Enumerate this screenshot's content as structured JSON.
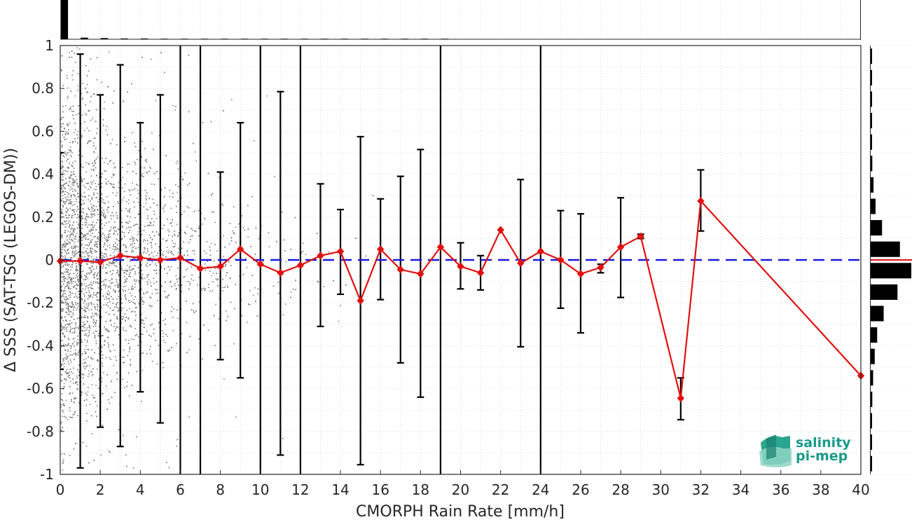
{
  "chart_data": {
    "type": "scatter",
    "xlabel": "CMORPH Rain Rate [mm/h]",
    "ylabel": "Δ SSS (SAT-TSG (LEGOS-DM))",
    "xlim": [
      0,
      40
    ],
    "ylim": [
      -1,
      1
    ],
    "x_ticks": [
      "0",
      "2",
      "4",
      "6",
      "8",
      "10",
      "12",
      "14",
      "16",
      "18",
      "20",
      "22",
      "24",
      "26",
      "28",
      "30",
      "32",
      "34",
      "36",
      "38",
      "40"
    ],
    "y_ticks": [
      "-1",
      "-0.8",
      "-0.6",
      "-0.4",
      "-0.2",
      "0",
      "0.2",
      "0.4",
      "0.6",
      "0.8",
      "1"
    ],
    "grid": "dotted",
    "zero_line": {
      "y": 0,
      "color": "#1a1adb",
      "style": "dashed"
    },
    "series": [
      {
        "color": "#e01010",
        "x": [
          0,
          1,
          2,
          3,
          4,
          5,
          6,
          7,
          8,
          9,
          10,
          11,
          12,
          13,
          14,
          15,
          16,
          17,
          18,
          19,
          20,
          21,
          22,
          23,
          24,
          25,
          26,
          27,
          28,
          29,
          31,
          32,
          40
        ],
        "values": [
          -0.005,
          -0.005,
          -0.01,
          0.02,
          0.01,
          0.0,
          0.01,
          -0.04,
          -0.03,
          0.05,
          -0.02,
          -0.06,
          -0.025,
          0.02,
          0.04,
          -0.19,
          0.05,
          -0.045,
          -0.065,
          0.06,
          -0.03,
          -0.06,
          0.14,
          -0.015,
          0.04,
          0.0,
          -0.065,
          -0.035,
          0.06,
          0.11,
          -0.645,
          0.275,
          -0.54
        ],
        "error_upper": [
          0.5,
          0.96,
          0.77,
          0.91,
          0.64,
          0.77,
          1.05,
          1.05,
          0.41,
          0.64,
          1.05,
          0.785,
          1.05,
          0.355,
          0.235,
          0.575,
          0.285,
          0.39,
          0.515,
          1.05,
          0.08,
          0.02,
          null,
          0.375,
          1.05,
          0.23,
          0.215,
          -0.02,
          0.29,
          0.12,
          -0.55,
          0.42,
          null
        ],
        "error_lower": [
          -0.51,
          -0.97,
          -0.78,
          -0.87,
          -0.615,
          -0.76,
          -1.05,
          -1.05,
          -0.465,
          -0.55,
          -1.05,
          -0.91,
          -1.05,
          -0.31,
          -0.16,
          -0.955,
          -0.185,
          -0.48,
          -0.64,
          -1.05,
          -0.135,
          -0.14,
          null,
          -0.405,
          -1.05,
          -0.225,
          -0.34,
          -0.06,
          -0.175,
          0.1,
          -0.745,
          0.135,
          null
        ]
      }
    ],
    "top_histogram": {
      "bins": [
        0,
        1,
        2,
        3,
        4,
        5,
        6,
        7,
        8,
        9,
        10,
        11,
        12,
        13,
        14,
        15,
        16,
        17,
        18,
        19,
        20,
        21,
        22,
        23,
        24,
        25,
        26,
        27,
        28,
        29,
        30,
        31,
        32,
        33,
        34,
        35,
        36,
        37,
        38,
        39
      ],
      "counts": [
        1.0,
        0.04,
        0.03,
        0.02,
        0.02,
        0.015,
        0.01,
        0.008,
        0.006,
        0.005,
        0.004,
        0.003,
        0.002,
        0.002,
        0.001,
        0.001,
        0.001,
        0.001,
        0.001,
        0.001,
        0,
        0,
        0,
        0,
        0,
        0,
        0,
        0,
        0,
        0,
        0,
        0,
        0,
        0,
        0,
        0,
        0,
        0,
        0,
        0
      ]
    },
    "right_histogram": {
      "bin_centers": [
        -0.95,
        -0.85,
        -0.75,
        -0.65,
        -0.55,
        -0.45,
        -0.35,
        -0.25,
        -0.15,
        -0.05,
        0.05,
        0.15,
        0.25,
        0.35,
        0.45,
        0.55,
        0.65,
        0.75,
        0.85,
        0.95
      ],
      "counts": [
        0.02,
        0.03,
        0.03,
        0.04,
        0.06,
        0.1,
        0.16,
        0.32,
        0.66,
        1.0,
        0.72,
        0.28,
        0.12,
        0.07,
        0.04,
        0.03,
        0.02,
        0.02,
        0.01,
        0.01
      ],
      "median_marker_color": "#e01010"
    }
  },
  "logo": {
    "line1": "salinity",
    "line2": "pi-mep"
  }
}
